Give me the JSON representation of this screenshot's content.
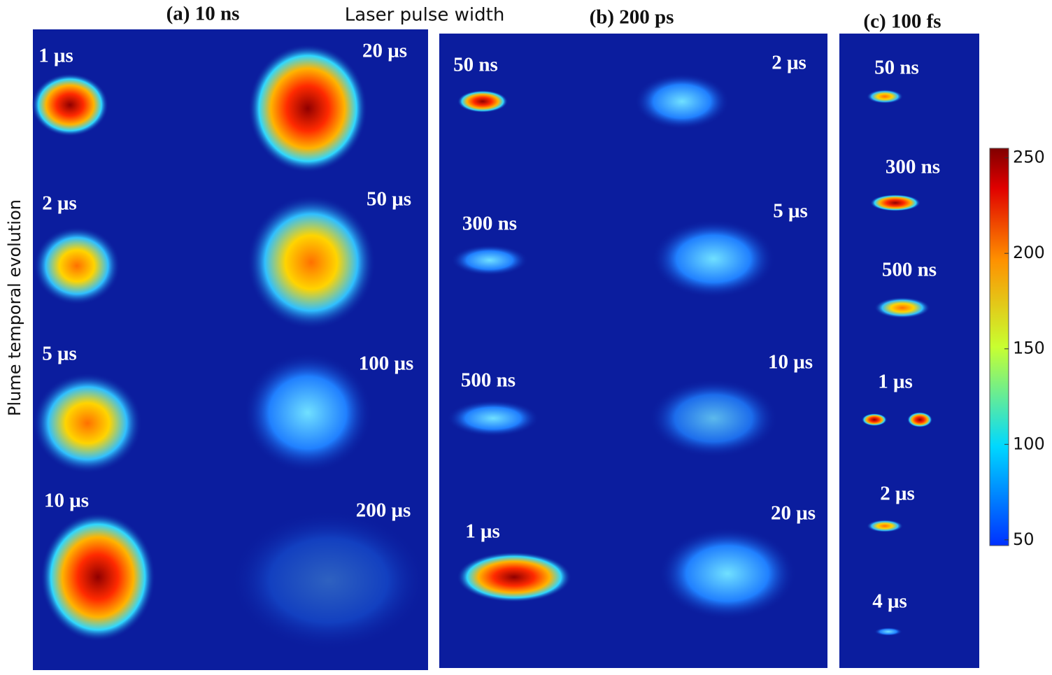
{
  "header": {
    "axis_top": "Laser pulse width",
    "axis_left": "Plume temporal evolution"
  },
  "panels": [
    {
      "title": "(a) 10 ns",
      "labels": [
        "1 μs",
        "2 μs",
        "5 μs",
        "10 μs",
        "20 μs",
        "50 μs",
        "100 μs",
        "200 μs"
      ]
    },
    {
      "title": "(b) 200 ps",
      "labels": [
        "50 ns",
        "300 ns",
        "500 ns",
        "1 μs",
        "2 μs",
        "5 μs",
        "10 μs",
        "20 μs"
      ]
    },
    {
      "title": "(c) 100 fs",
      "labels": [
        "50 ns",
        "300 ns",
        "500 ns",
        "1 μs",
        "2 μs",
        "4 μs"
      ]
    }
  ],
  "colorbar": {
    "range": [
      47,
      255
    ],
    "ticks": [
      250,
      200,
      150,
      100,
      50
    ]
  }
}
